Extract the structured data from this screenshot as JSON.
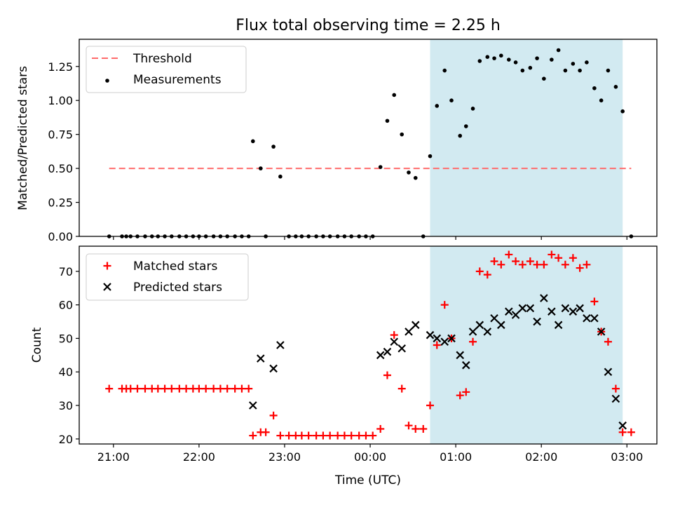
{
  "figure": {
    "title": "Flux total observing time = 2.25 h"
  },
  "chart_data": [
    {
      "type": "scatter",
      "panel": "top",
      "title": "Flux total observing time = 2.25 h",
      "xlabel": "",
      "ylabel": "Matched/Predicted stars",
      "x_units": "hours after 21:00 UTC",
      "xlim": [
        -0.4,
        6.35
      ],
      "ylim": [
        0,
        1.45
      ],
      "yticks": [
        0.0,
        0.25,
        0.5,
        0.75,
        1.0,
        1.25
      ],
      "ytick_labels": [
        "0.00",
        "0.25",
        "0.50",
        "0.75",
        "1.00",
        "1.25"
      ],
      "grid": false,
      "legend": "upper left",
      "shaded_region": {
        "x_start": 3.7,
        "x_end": 5.95,
        "color": "#add8e6"
      },
      "threshold": {
        "name": "Threshold",
        "y": 0.5,
        "x_start": -0.05,
        "x_end": 6.05,
        "color": "#ff6b6b",
        "style": "dashed"
      },
      "series": [
        {
          "name": "Measurements",
          "color": "#000000",
          "marker": "dot",
          "points": [
            [
              -0.05,
              0
            ],
            [
              0.1,
              0
            ],
            [
              0.15,
              0
            ],
            [
              0.2,
              0
            ],
            [
              0.28,
              0
            ],
            [
              0.37,
              0
            ],
            [
              0.45,
              0
            ],
            [
              0.52,
              0
            ],
            [
              0.6,
              0
            ],
            [
              0.68,
              0
            ],
            [
              0.77,
              0
            ],
            [
              0.85,
              0
            ],
            [
              0.93,
              0
            ],
            [
              1.0,
              0
            ],
            [
              1.08,
              0
            ],
            [
              1.17,
              0
            ],
            [
              1.25,
              0
            ],
            [
              1.33,
              0
            ],
            [
              1.42,
              0
            ],
            [
              1.5,
              0
            ],
            [
              1.58,
              0
            ],
            [
              1.63,
              0.7
            ],
            [
              1.72,
              0.5
            ],
            [
              1.78,
              0
            ],
            [
              1.87,
              0.66
            ],
            [
              1.95,
              0.44
            ],
            [
              2.05,
              0
            ],
            [
              2.13,
              0
            ],
            [
              2.2,
              0
            ],
            [
              2.28,
              0
            ],
            [
              2.37,
              0
            ],
            [
              2.45,
              0
            ],
            [
              2.53,
              0
            ],
            [
              2.62,
              0
            ],
            [
              2.7,
              0
            ],
            [
              2.78,
              0
            ],
            [
              2.87,
              0
            ],
            [
              2.95,
              0
            ],
            [
              3.03,
              0
            ],
            [
              3.12,
              0.51
            ],
            [
              3.2,
              0.85
            ],
            [
              3.28,
              1.04
            ],
            [
              3.37,
              0.75
            ],
            [
              3.45,
              0.47
            ],
            [
              3.53,
              0.43
            ],
            [
              3.62,
              0
            ],
            [
              3.7,
              0.59
            ],
            [
              3.78,
              0.96
            ],
            [
              3.87,
              1.22
            ],
            [
              3.95,
              1.0
            ],
            [
              4.05,
              0.74
            ],
            [
              4.12,
              0.81
            ],
            [
              4.2,
              0.94
            ],
            [
              4.28,
              1.29
            ],
            [
              4.37,
              1.32
            ],
            [
              4.45,
              1.31
            ],
            [
              4.53,
              1.33
            ],
            [
              4.62,
              1.3
            ],
            [
              4.7,
              1.28
            ],
            [
              4.78,
              1.22
            ],
            [
              4.87,
              1.24
            ],
            [
              4.95,
              1.31
            ],
            [
              5.03,
              1.16
            ],
            [
              5.12,
              1.3
            ],
            [
              5.2,
              1.37
            ],
            [
              5.28,
              1.22
            ],
            [
              5.37,
              1.27
            ],
            [
              5.45,
              1.22
            ],
            [
              5.53,
              1.28
            ],
            [
              5.62,
              1.09
            ],
            [
              5.7,
              1.0
            ],
            [
              5.78,
              1.22
            ],
            [
              5.87,
              1.1
            ],
            [
              5.95,
              0.92
            ],
            [
              6.05,
              0
            ]
          ]
        }
      ]
    },
    {
      "type": "scatter",
      "panel": "bottom",
      "title": "",
      "xlabel": "Time (UTC)",
      "ylabel": "Count",
      "x_units": "hours after 21:00 UTC",
      "xlim": [
        -0.4,
        6.35
      ],
      "ylim": [
        18.5,
        77.5
      ],
      "yticks": [
        20,
        30,
        40,
        50,
        60,
        70
      ],
      "ytick_labels": [
        "20",
        "30",
        "40",
        "50",
        "60",
        "70"
      ],
      "xticks": [
        0,
        1,
        2,
        3,
        4,
        5,
        6
      ],
      "xtick_labels": [
        "21:00",
        "22:00",
        "23:00",
        "00:00",
        "01:00",
        "02:00",
        "03:00"
      ],
      "grid": false,
      "legend": "upper left",
      "shaded_region": {
        "x_start": 3.7,
        "x_end": 5.95,
        "color": "#add8e6"
      },
      "series": [
        {
          "name": "Matched stars",
          "color": "#ff0000",
          "marker": "plus",
          "points": [
            [
              -0.05,
              35
            ],
            [
              0.1,
              35
            ],
            [
              0.15,
              35
            ],
            [
              0.2,
              35
            ],
            [
              0.28,
              35
            ],
            [
              0.37,
              35
            ],
            [
              0.45,
              35
            ],
            [
              0.52,
              35
            ],
            [
              0.6,
              35
            ],
            [
              0.68,
              35
            ],
            [
              0.77,
              35
            ],
            [
              0.85,
              35
            ],
            [
              0.93,
              35
            ],
            [
              1.0,
              35
            ],
            [
              1.08,
              35
            ],
            [
              1.17,
              35
            ],
            [
              1.25,
              35
            ],
            [
              1.33,
              35
            ],
            [
              1.42,
              35
            ],
            [
              1.5,
              35
            ],
            [
              1.58,
              35
            ],
            [
              1.63,
              21
            ],
            [
              1.72,
              22
            ],
            [
              1.78,
              22
            ],
            [
              1.87,
              27
            ],
            [
              1.95,
              21
            ],
            [
              2.05,
              21
            ],
            [
              2.13,
              21
            ],
            [
              2.2,
              21
            ],
            [
              2.28,
              21
            ],
            [
              2.37,
              21
            ],
            [
              2.45,
              21
            ],
            [
              2.53,
              21
            ],
            [
              2.62,
              21
            ],
            [
              2.7,
              21
            ],
            [
              2.78,
              21
            ],
            [
              2.87,
              21
            ],
            [
              2.95,
              21
            ],
            [
              3.03,
              21
            ],
            [
              3.12,
              23
            ],
            [
              3.2,
              39
            ],
            [
              3.28,
              51
            ],
            [
              3.37,
              35
            ],
            [
              3.45,
              24
            ],
            [
              3.53,
              23
            ],
            [
              3.62,
              23
            ],
            [
              3.7,
              30
            ],
            [
              3.78,
              48
            ],
            [
              3.87,
              60
            ],
            [
              3.95,
              50
            ],
            [
              4.05,
              33
            ],
            [
              4.12,
              34
            ],
            [
              4.2,
              49
            ],
            [
              4.28,
              70
            ],
            [
              4.37,
              69
            ],
            [
              4.45,
              73
            ],
            [
              4.53,
              72
            ],
            [
              4.62,
              75
            ],
            [
              4.7,
              73
            ],
            [
              4.78,
              72
            ],
            [
              4.87,
              73
            ],
            [
              4.95,
              72
            ],
            [
              5.03,
              72
            ],
            [
              5.12,
              75
            ],
            [
              5.2,
              74
            ],
            [
              5.28,
              72
            ],
            [
              5.37,
              74
            ],
            [
              5.45,
              71
            ],
            [
              5.53,
              72
            ],
            [
              5.62,
              61
            ],
            [
              5.7,
              52
            ],
            [
              5.78,
              49
            ],
            [
              5.87,
              35
            ],
            [
              5.95,
              22
            ],
            [
              6.05,
              22
            ]
          ]
        },
        {
          "name": "Predicted stars",
          "color": "#000000",
          "marker": "x",
          "points": [
            [
              1.63,
              30
            ],
            [
              1.72,
              44
            ],
            [
              1.87,
              41
            ],
            [
              1.95,
              48
            ],
            [
              3.12,
              45
            ],
            [
              3.2,
              46
            ],
            [
              3.28,
              49
            ],
            [
              3.37,
              47
            ],
            [
              3.45,
              52
            ],
            [
              3.53,
              54
            ],
            [
              3.7,
              51
            ],
            [
              3.78,
              50
            ],
            [
              3.87,
              49
            ],
            [
              3.95,
              50
            ],
            [
              4.05,
              45
            ],
            [
              4.12,
              42
            ],
            [
              4.2,
              52
            ],
            [
              4.28,
              54
            ],
            [
              4.37,
              52
            ],
            [
              4.45,
              56
            ],
            [
              4.53,
              54
            ],
            [
              4.62,
              58
            ],
            [
              4.7,
              57
            ],
            [
              4.78,
              59
            ],
            [
              4.87,
              59
            ],
            [
              4.95,
              55
            ],
            [
              5.03,
              62
            ],
            [
              5.12,
              58
            ],
            [
              5.2,
              54
            ],
            [
              5.28,
              59
            ],
            [
              5.37,
              58
            ],
            [
              5.45,
              59
            ],
            [
              5.53,
              56
            ],
            [
              5.62,
              56
            ],
            [
              5.7,
              52
            ],
            [
              5.78,
              40
            ],
            [
              5.87,
              32
            ],
            [
              5.95,
              24
            ]
          ]
        }
      ]
    }
  ]
}
